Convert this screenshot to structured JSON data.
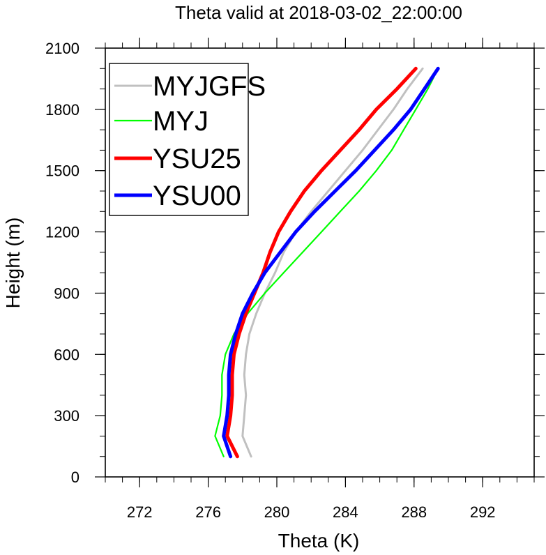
{
  "chart_data": {
    "type": "line",
    "title": "Theta valid at 2018-03-02_22:00:00",
    "xlabel": "Theta (K)",
    "ylabel": "Height (m)",
    "xlim": [
      270,
      295
    ],
    "ylim": [
      0,
      2100
    ],
    "x_ticks": [
      272,
      276,
      280,
      284,
      288,
      292
    ],
    "y_ticks": [
      0,
      300,
      600,
      900,
      1200,
      1500,
      1800,
      2100
    ],
    "x_ticks_labels": [
      "272",
      "276",
      "280",
      "284",
      "288",
      "292"
    ],
    "y_ticks_labels": [
      "0",
      "300",
      "600",
      "900",
      "1200",
      "1500",
      "1800",
      "2100"
    ],
    "legend_position": "top-left",
    "series": [
      {
        "name": "MYJGFS",
        "color": "#c0c0c0",
        "points": [
          [
            278.5,
            100
          ],
          [
            278.0,
            200
          ],
          [
            278.1,
            300
          ],
          [
            278.2,
            400
          ],
          [
            278.1,
            500
          ],
          [
            278.2,
            600
          ],
          [
            278.4,
            700
          ],
          [
            278.8,
            800
          ],
          [
            279.3,
            900
          ],
          [
            279.9,
            1000
          ],
          [
            280.4,
            1100
          ],
          [
            281.1,
            1200
          ],
          [
            282.0,
            1300
          ],
          [
            283.0,
            1400
          ],
          [
            284.0,
            1500
          ],
          [
            285.0,
            1600
          ],
          [
            285.9,
            1700
          ],
          [
            286.8,
            1800
          ],
          [
            287.6,
            1900
          ],
          [
            288.5,
            2000
          ]
        ]
      },
      {
        "name": "MYJ",
        "color": "#00ff00",
        "points": [
          [
            276.9,
            100
          ],
          [
            276.4,
            200
          ],
          [
            276.7,
            300
          ],
          [
            276.8,
            400
          ],
          [
            276.8,
            500
          ],
          [
            277.0,
            600
          ],
          [
            277.5,
            700
          ],
          [
            278.3,
            800
          ],
          [
            279.3,
            900
          ],
          [
            280.4,
            1000
          ],
          [
            281.5,
            1100
          ],
          [
            282.6,
            1200
          ],
          [
            283.7,
            1300
          ],
          [
            284.8,
            1400
          ],
          [
            285.8,
            1500
          ],
          [
            286.7,
            1600
          ],
          [
            287.4,
            1700
          ],
          [
            288.1,
            1800
          ],
          [
            288.8,
            1900
          ],
          [
            289.4,
            2000
          ]
        ]
      },
      {
        "name": "YSU25",
        "color": "#ff0000",
        "points": [
          [
            277.7,
            100
          ],
          [
            277.1,
            200
          ],
          [
            277.3,
            300
          ],
          [
            277.4,
            400
          ],
          [
            277.4,
            500
          ],
          [
            277.5,
            600
          ],
          [
            277.8,
            700
          ],
          [
            278.2,
            800
          ],
          [
            278.7,
            900
          ],
          [
            279.2,
            1000
          ],
          [
            279.6,
            1100
          ],
          [
            280.1,
            1200
          ],
          [
            280.8,
            1300
          ],
          [
            281.6,
            1400
          ],
          [
            282.6,
            1500
          ],
          [
            283.7,
            1600
          ],
          [
            284.8,
            1700
          ],
          [
            285.8,
            1800
          ],
          [
            287.0,
            1900
          ],
          [
            288.1,
            2000
          ]
        ]
      },
      {
        "name": "YSU00",
        "color": "#0000ff",
        "points": [
          [
            277.3,
            100
          ],
          [
            276.9,
            200
          ],
          [
            277.1,
            300
          ],
          [
            277.2,
            400
          ],
          [
            277.2,
            500
          ],
          [
            277.3,
            600
          ],
          [
            277.6,
            700
          ],
          [
            278.0,
            800
          ],
          [
            278.6,
            900
          ],
          [
            279.3,
            1000
          ],
          [
            280.2,
            1100
          ],
          [
            281.1,
            1200
          ],
          [
            282.2,
            1300
          ],
          [
            283.4,
            1400
          ],
          [
            284.6,
            1500
          ],
          [
            285.7,
            1600
          ],
          [
            286.8,
            1700
          ],
          [
            287.8,
            1800
          ],
          [
            288.6,
            1900
          ],
          [
            289.4,
            2000
          ]
        ]
      }
    ]
  }
}
